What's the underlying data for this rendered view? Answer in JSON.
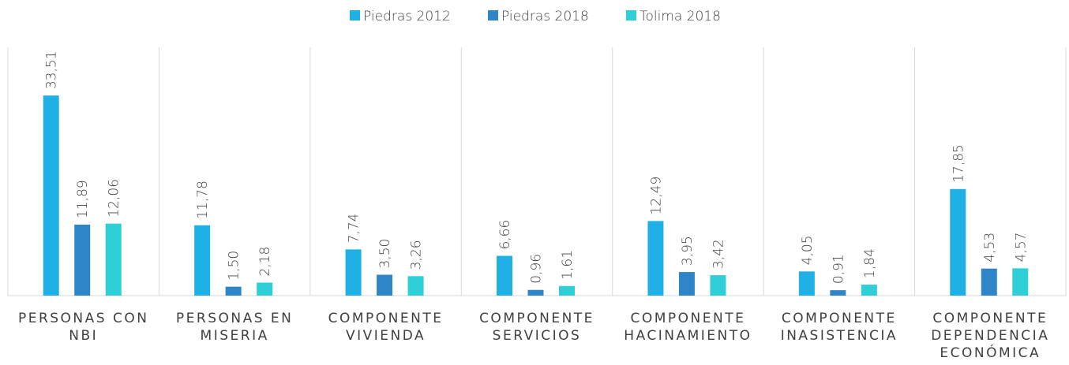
{
  "chart_data": {
    "type": "bar",
    "categories": [
      "PERSONAS CON NBI",
      "PERSONAS EN MISERIA",
      "COMPONENTE VIVIENDA",
      "COMPONENTE SERVICIOS",
      "COMPONENTE HACINAMIENTO",
      "COMPONENTE INASISTENCIA",
      "COMPONENTE DEPENDENCIA ECONÓMICA"
    ],
    "series": [
      {
        "name": "Piedras 2012",
        "color": "#1fb1e6",
        "values": [
          33.51,
          11.78,
          7.74,
          6.66,
          12.49,
          4.05,
          17.85
        ],
        "value_labels": [
          "33,51",
          "11,78",
          "7,74",
          "6,66",
          "12,49",
          "4,05",
          "17,85"
        ]
      },
      {
        "name": "Piedras 2018",
        "color": "#2e86c8",
        "values": [
          11.89,
          1.5,
          3.5,
          0.96,
          3.95,
          0.91,
          4.53
        ],
        "value_labels": [
          "11,89",
          "1,50",
          "3,50",
          "0,96",
          "3,95",
          "0,91",
          "4,53"
        ]
      },
      {
        "name": "Tolima 2018",
        "color": "#2ecfd6",
        "values": [
          12.06,
          2.18,
          3.26,
          1.61,
          3.42,
          1.84,
          4.57
        ],
        "value_labels": [
          "12,06",
          "2,18",
          "3,26",
          "1,61",
          "3,42",
          "1,84",
          "4,57"
        ]
      }
    ],
    "ylim": [
      0,
      40
    ],
    "legend": "top"
  }
}
